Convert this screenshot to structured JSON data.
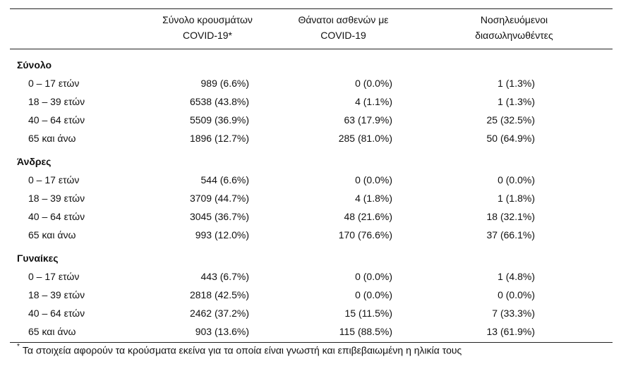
{
  "table": {
    "headers": [
      "",
      "Σύνολο κρουσμάτων COVID-19*",
      "Θάνατοι ασθενών με COVID-19",
      "Νοσηλευόμενοι διασωληνωθέντες"
    ],
    "header_lines": [
      [
        "",
        ""
      ],
      [
        "Σύνολο κρουσμάτων",
        "COVID-19*"
      ],
      [
        "Θάνατοι ασθενών με",
        "COVID-19"
      ],
      [
        "Νοσηλευόμενοι",
        "διασωληνωθέντες"
      ]
    ],
    "groups": [
      {
        "title": "Σύνολο",
        "rows": [
          {
            "age": "0 – 17 ετών",
            "cases": "989 (6.6%)",
            "deaths": "0 (0.0%)",
            "intubated": "1 (1.3%)"
          },
          {
            "age": "18 – 39 ετών",
            "cases": "6538 (43.8%)",
            "deaths": "4 (1.1%)",
            "intubated": "1 (1.3%)"
          },
          {
            "age": "40 – 64 ετών",
            "cases": "5509 (36.9%)",
            "deaths": "63 (17.9%)",
            "intubated": "25 (32.5%)"
          },
          {
            "age": "65 και άνω",
            "cases": "1896 (12.7%)",
            "deaths": "285 (81.0%)",
            "intubated": "50 (64.9%)"
          }
        ]
      },
      {
        "title": "Άνδρες",
        "rows": [
          {
            "age": "0 – 17 ετών",
            "cases": "544 (6.6%)",
            "deaths": "0 (0.0%)",
            "intubated": "0 (0.0%)"
          },
          {
            "age": "18 – 39 ετών",
            "cases": "3709 (44.7%)",
            "deaths": "4 (1.8%)",
            "intubated": "1 (1.8%)"
          },
          {
            "age": "40 – 64 ετών",
            "cases": "3045 (36.7%)",
            "deaths": "48 (21.6%)",
            "intubated": "18 (32.1%)"
          },
          {
            "age": "65 και άνω",
            "cases": "993 (12.0%)",
            "deaths": "170 (76.6%)",
            "intubated": "37 (66.1%)"
          }
        ]
      },
      {
        "title": "Γυναίκες",
        "rows": [
          {
            "age": "0 – 17 ετών",
            "cases": "443 (6.7%)",
            "deaths": "0 (0.0%)",
            "intubated": "1 (4.8%)"
          },
          {
            "age": "18 – 39 ετών",
            "cases": "2818 (42.5%)",
            "deaths": "0 (0.0%)",
            "intubated": "0 (0.0%)"
          },
          {
            "age": "40 – 64 ετών",
            "cases": "2462 (37.2%)",
            "deaths": "15 (11.5%)",
            "intubated": "7 (33.3%)"
          },
          {
            "age": "65 και άνω",
            "cases": "903 (13.6%)",
            "deaths": "115 (88.5%)",
            "intubated": "13 (61.9%)"
          }
        ]
      }
    ]
  },
  "footnote": {
    "marker": "*",
    "text": "Τα στοιχεία αφορούν τα κρούσματα εκείνα για τα οποία είναι γνωστή και επιβεβαιωμένη η ηλικία τους"
  }
}
